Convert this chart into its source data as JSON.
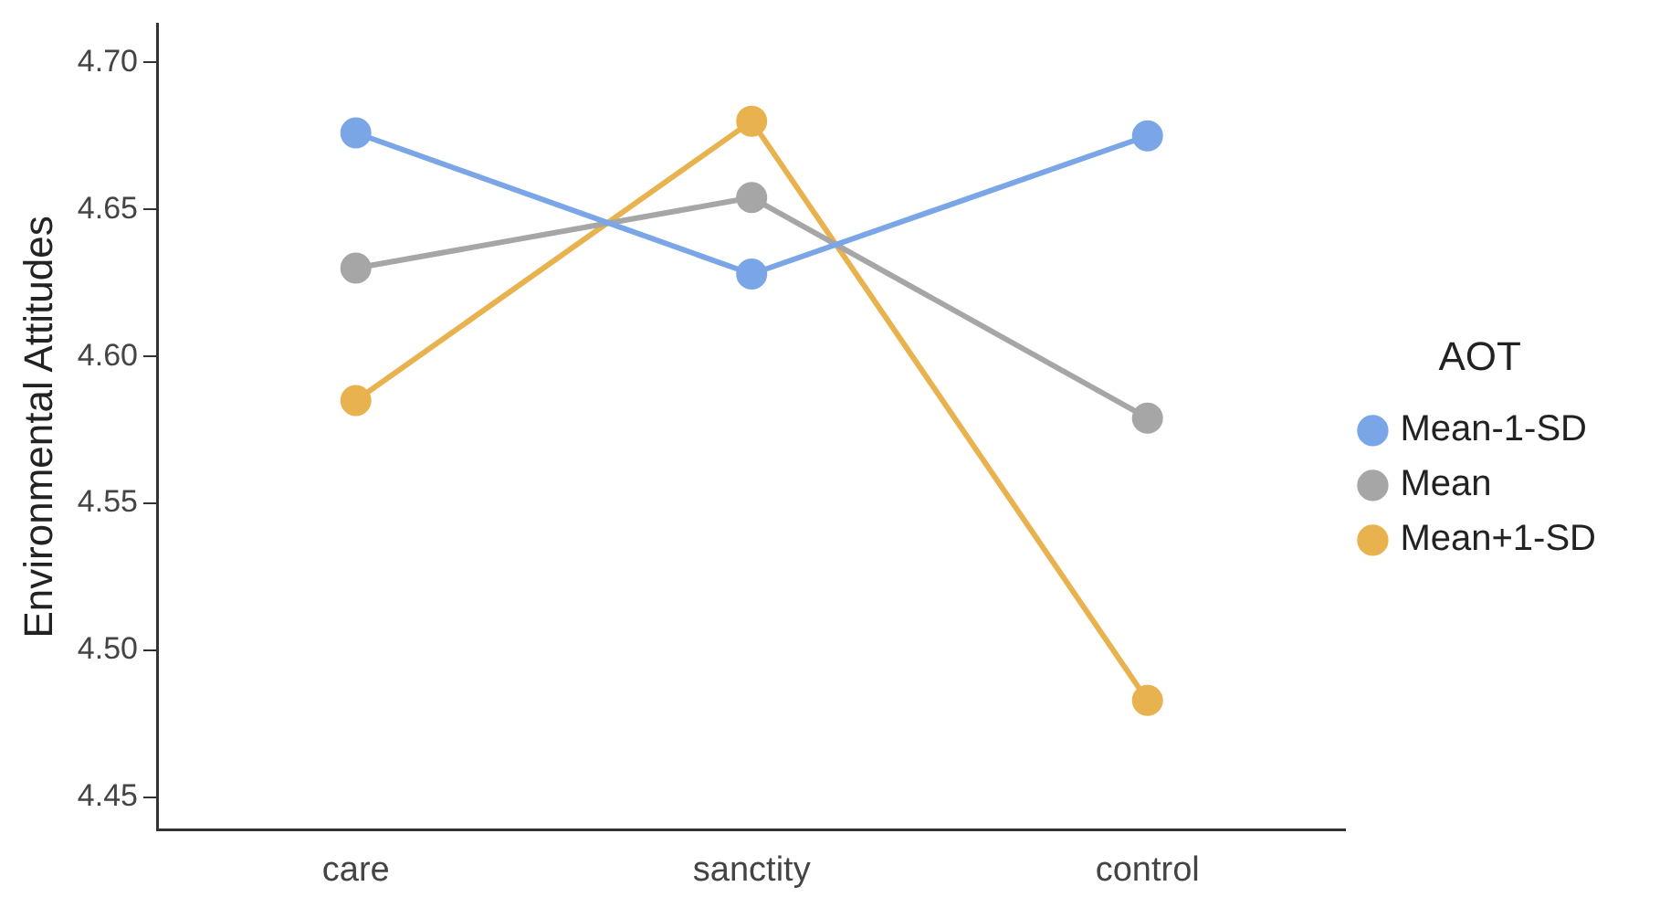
{
  "chart_data": {
    "type": "line",
    "ylabel": "Environmental Attitudes",
    "legend_title": "AOT",
    "categories": [
      "care",
      "sanctity",
      "control"
    ],
    "series": [
      {
        "name": "Mean-1-SD",
        "color": "#7aa6e8",
        "values": [
          4.676,
          4.628,
          4.675
        ]
      },
      {
        "name": "Mean",
        "color": "#a6a6a6",
        "values": [
          4.63,
          4.654,
          4.579
        ]
      },
      {
        "name": "Mean+1-SD",
        "color": "#e8b24f",
        "values": [
          4.585,
          4.68,
          4.483
        ]
      }
    ],
    "ylim": [
      4.439,
      4.713
    ],
    "yticks": [
      4.45,
      {
        "value": 4.5,
        "label": "4.50"
      },
      4.55,
      {
        "value": 4.6,
        "label": "4.60"
      },
      4.65,
      {
        "value": 4.7,
        "label": "4.70"
      }
    ],
    "grid": false,
    "legend": "right",
    "marker": "circle",
    "line_style": "solid"
  }
}
